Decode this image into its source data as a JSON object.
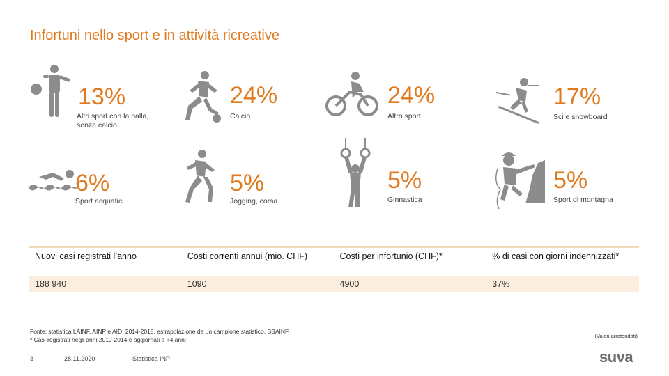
{
  "title": "Infortuni nello sport e in attività ricreative",
  "accent_color": "#e07a1f",
  "icon_color": "#8c8c8c",
  "stats": [
    {
      "percent": "13%",
      "label_lines": [
        "Altri sport con la palla,",
        "senza calcio"
      ],
      "icon": "ball-player-icon"
    },
    {
      "percent": "24%",
      "label_lines": [
        "Calcio"
      ],
      "icon": "soccer-icon"
    },
    {
      "percent": "24%",
      "label_lines": [
        "Altro sport"
      ],
      "icon": "cyclist-icon"
    },
    {
      "percent": "17%",
      "label_lines": [
        "Sci e snowboard"
      ],
      "icon": "skier-icon"
    },
    {
      "percent": "6%",
      "label_lines": [
        "Sport acquatici"
      ],
      "icon": "swimmer-icon"
    },
    {
      "percent": "5%",
      "label_lines": [
        "Jogging, corsa"
      ],
      "icon": "runner-icon"
    },
    {
      "percent": "5%",
      "label_lines": [
        "Ginnastica"
      ],
      "icon": "gymnast-rings-icon"
    },
    {
      "percent": "5%",
      "label_lines": [
        "Sport di montagna"
      ],
      "icon": "climber-icon"
    }
  ],
  "table": {
    "headers": [
      "Nuovi casi registrati l’anno",
      "Costi correnti annui (mio. CHF)",
      "Costi per infortunio (CHF)*",
      "% di casi con giorni indennizzati*"
    ],
    "values": [
      "188 940",
      "1090",
      "4900",
      "37%"
    ]
  },
  "footnote_lines": [
    "Fonte: statistica LAINF, AINP e AID, 2014-2018, estrapolazione da un campione statistico, SSAINF",
    "* Casi registrati negli anni 2010-2014 e aggiornati a +4 anni"
  ],
  "rounding_note": "(Valori arrotondati)",
  "footer": {
    "page": "3",
    "date": "28.11.2020",
    "source": "Statistica INP"
  },
  "logo_text": "suva"
}
